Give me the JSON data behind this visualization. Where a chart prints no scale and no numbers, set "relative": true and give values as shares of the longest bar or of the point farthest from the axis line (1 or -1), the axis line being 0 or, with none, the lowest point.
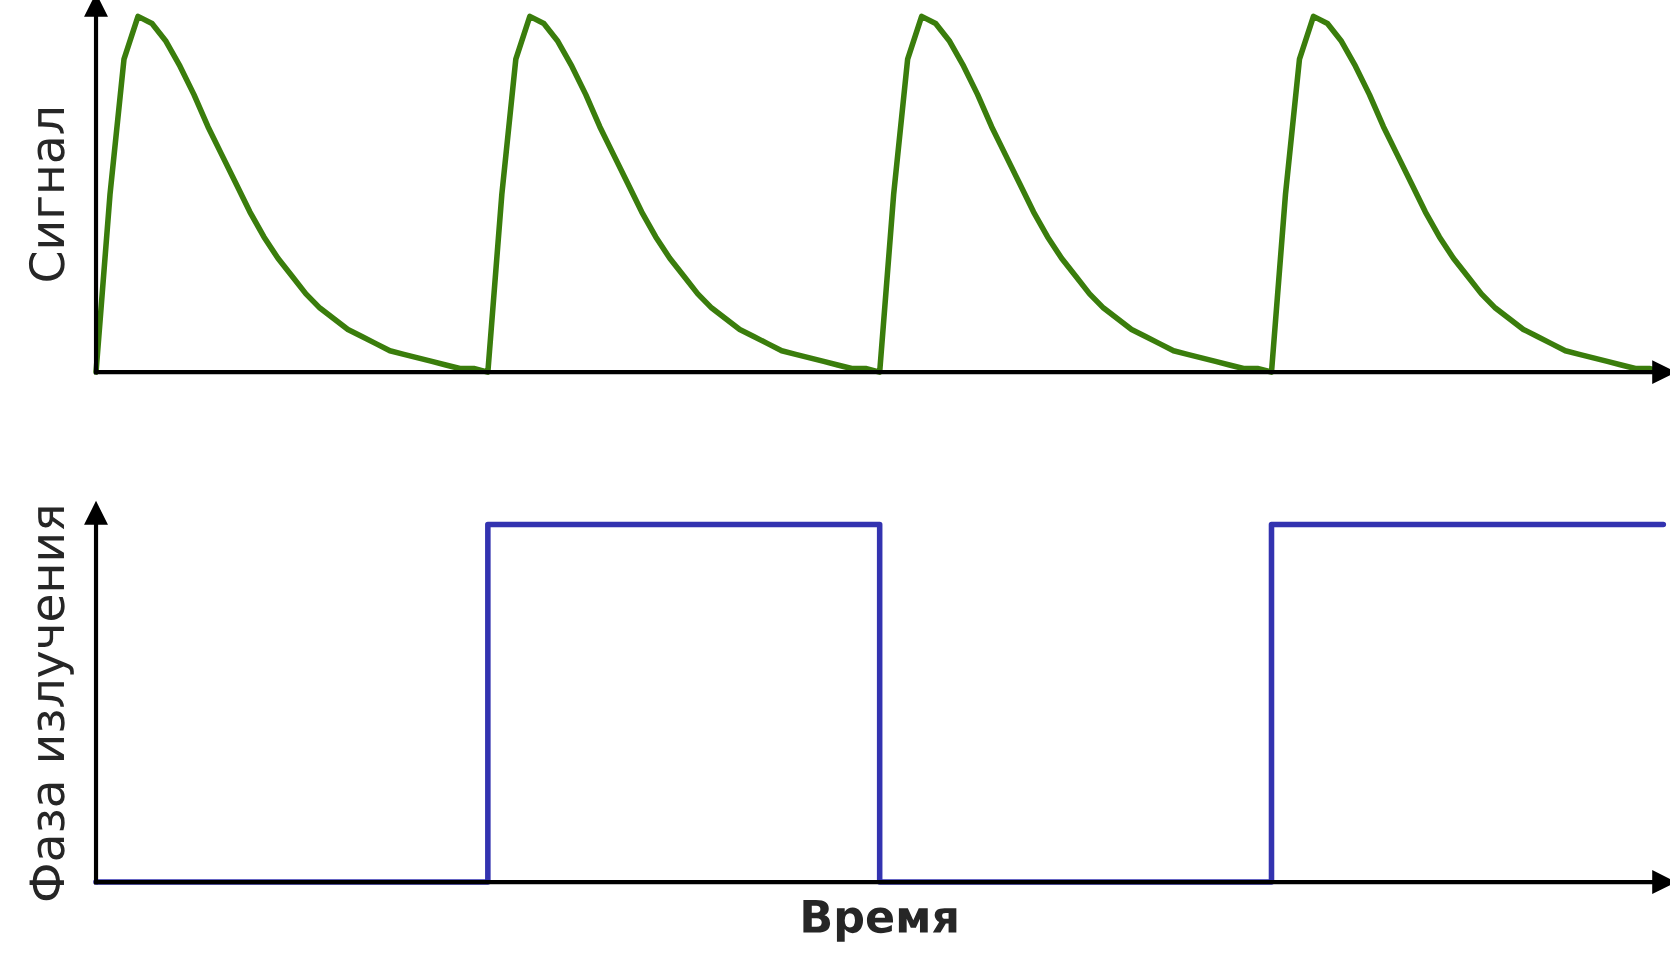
{
  "chart_data": [
    {
      "type": "line",
      "relative": true,
      "ylabel": "Сигнал",
      "categories": [
        null,
        null,
        null,
        null,
        null,
        null,
        null,
        null,
        null,
        null,
        null,
        null,
        null,
        null,
        null,
        null,
        null,
        null,
        null,
        null,
        null,
        null,
        null,
        null,
        null,
        null,
        null,
        null,
        null,
        null,
        null,
        null,
        null,
        null,
        null,
        null,
        null,
        null,
        null,
        null,
        null,
        null,
        null,
        null,
        null,
        null,
        null,
        null,
        null,
        null,
        null,
        null,
        null,
        null,
        null,
        null,
        null,
        null,
        null,
        null,
        null,
        null,
        null,
        null,
        null,
        null,
        null,
        null,
        null,
        null,
        null,
        null,
        null,
        null,
        null,
        null,
        null,
        null,
        null,
        null,
        null,
        null,
        null,
        null,
        null,
        null,
        null,
        null,
        null,
        null,
        null,
        null,
        null,
        null,
        null,
        null,
        null,
        null,
        null,
        null,
        null,
        null,
        null,
        null,
        null,
        null,
        null,
        null,
        null,
        null,
        null,
        null,
        null
      ],
      "series": [
        {
          "color": "#3a7d0c",
          "values": [
            0,
            0.5,
            0.88,
            1,
            0.98,
            0.93,
            0.86,
            0.78,
            0.69,
            0.61,
            0.53,
            0.45,
            0.38,
            0.32,
            0.27,
            0.22,
            0.18,
            0.15,
            0.12,
            0.1,
            0.08,
            0.06,
            0.05,
            0.04,
            0.03,
            0.02,
            0.01,
            0.01,
            0,
            0.5,
            0.88,
            1,
            0.98,
            0.93,
            0.86,
            0.78,
            0.69,
            0.61,
            0.53,
            0.45,
            0.38,
            0.32,
            0.27,
            0.22,
            0.18,
            0.15,
            0.12,
            0.1,
            0.08,
            0.06,
            0.05,
            0.04,
            0.03,
            0.02,
            0.01,
            0.01,
            0,
            0.5,
            0.88,
            1,
            0.98,
            0.93,
            0.86,
            0.78,
            0.69,
            0.61,
            0.53,
            0.45,
            0.38,
            0.32,
            0.27,
            0.22,
            0.18,
            0.15,
            0.12,
            0.1,
            0.08,
            0.06,
            0.05,
            0.04,
            0.03,
            0.02,
            0.01,
            0.01,
            0,
            0.5,
            0.88,
            1,
            0.98,
            0.93,
            0.86,
            0.78,
            0.69,
            0.61,
            0.53,
            0.45,
            0.38,
            0.32,
            0.27,
            0.22,
            0.18,
            0.15,
            0.12,
            0.1,
            0.08,
            0.06,
            0.05,
            0.04,
            0.03,
            0.02,
            0.01,
            0.01,
            0
          ]
        }
      ]
    },
    {
      "type": "step",
      "relative": true,
      "ylabel": "Фаза излучения",
      "xlabel": "Время",
      "categories": [
        null,
        null,
        null,
        null,
        null
      ],
      "series": [
        {
          "color": "#3333b0",
          "values": [
            0,
            1,
            0,
            1,
            1
          ]
        }
      ]
    }
  ]
}
